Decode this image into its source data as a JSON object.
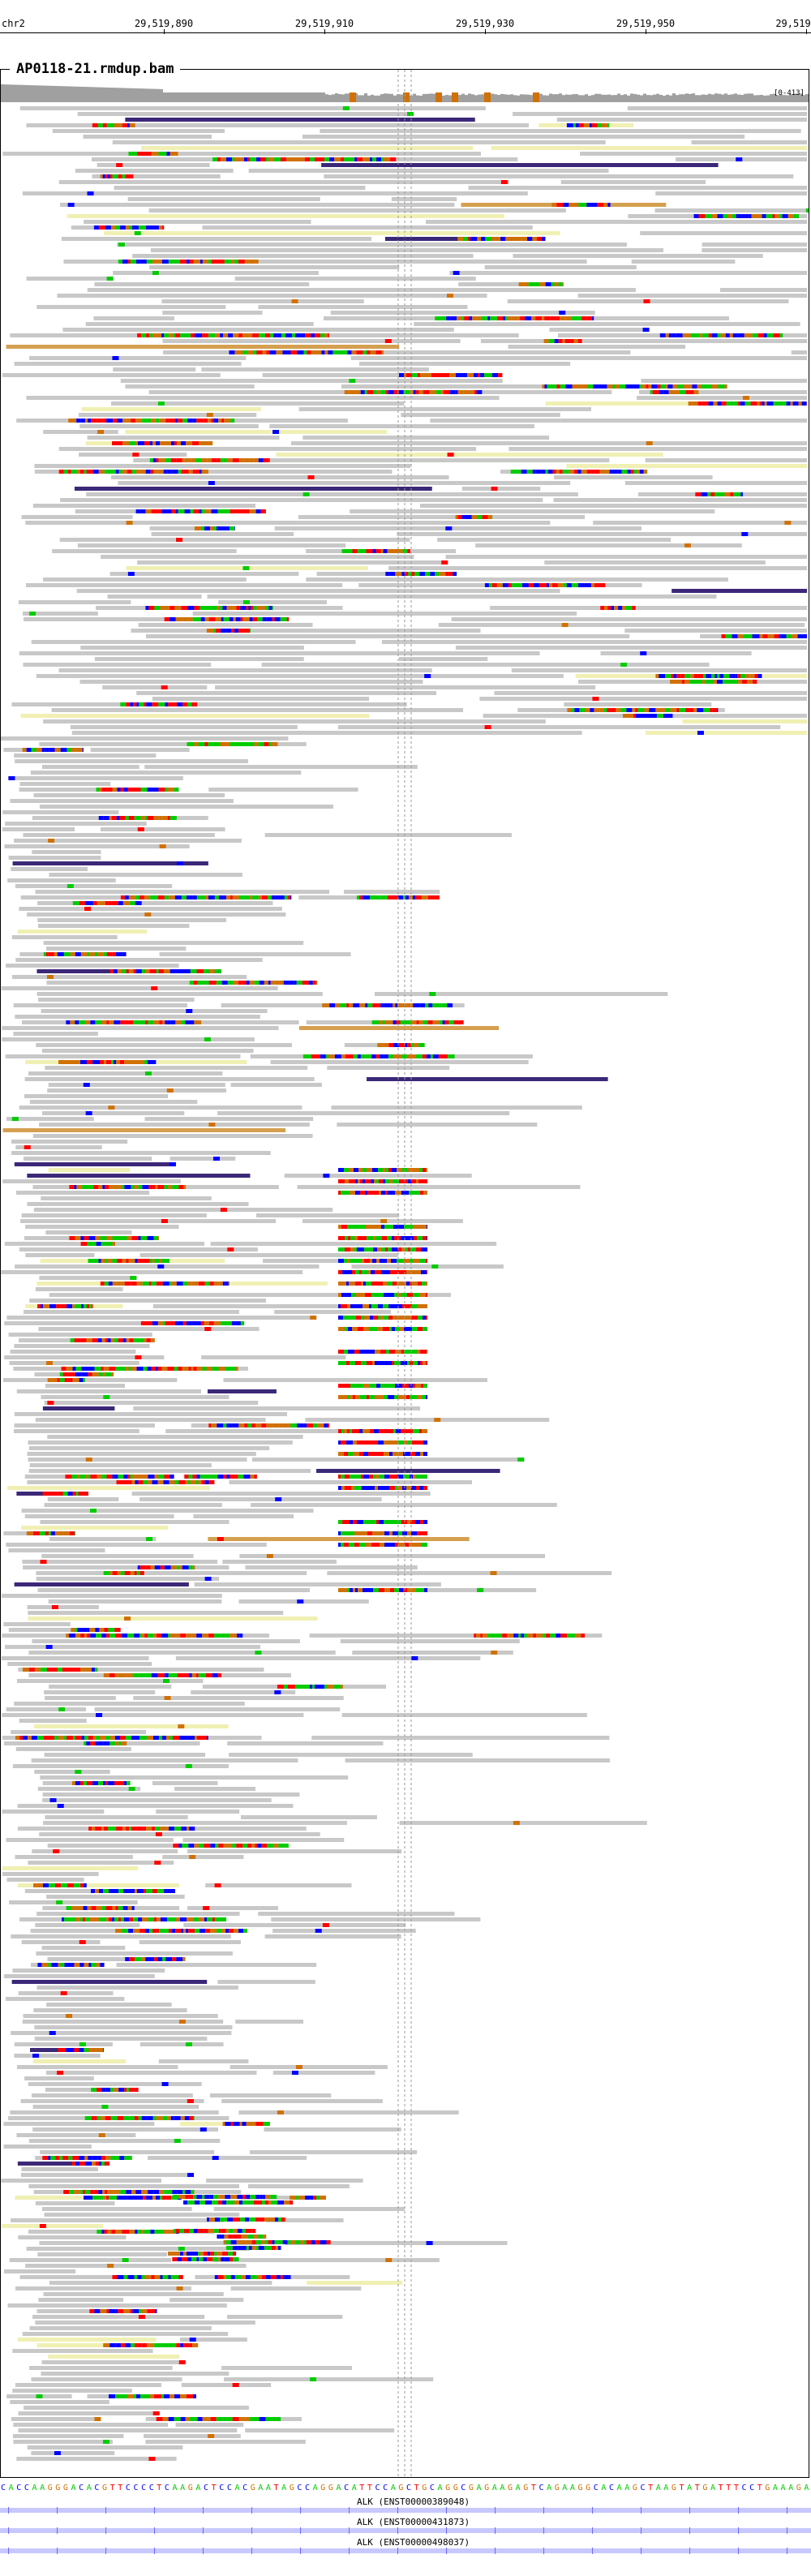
{
  "ruler": {
    "chromosome": "chr2",
    "ticks": [
      "29,519,890",
      "29,519,910",
      "29,519,930",
      "29,519,950",
      "29,519"
    ]
  },
  "track": {
    "title": "AP0118-21.rmdup.bam",
    "scale": "[0-413]"
  },
  "reference_sequence": "CACCAAGGGACACGTTCCCCTCAAGACTCCACGAATAGCCAGGACATTCCAGCTGCAGGCGAGAAGAGTCAGAAGGCACAAGCTAAGTATGATTTCCTGAAAGA",
  "genes": [
    {
      "label": "ALK (ENST00000389048)"
    },
    {
      "label": "ALK (ENST00000431873)"
    },
    {
      "label": "ALK (ENST00000498037)"
    }
  ],
  "colors": {
    "A": "#00cc00",
    "C": "#0000ff",
    "G": "#d17105",
    "T": "#ff0000",
    "read": "#c8c8c8",
    "mapq_zero": "#f0f0b4",
    "purple_read": "#3c2878",
    "orange_read": "#d4a050",
    "coverage": "#a0a0a0"
  }
}
